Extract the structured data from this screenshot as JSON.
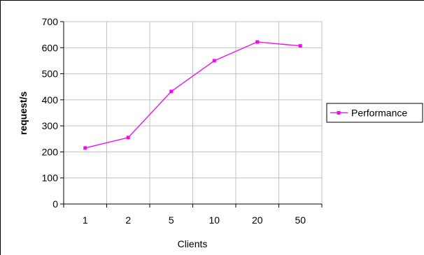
{
  "chart_data": {
    "type": "line",
    "categories": [
      "1",
      "2",
      "5",
      "10",
      "20",
      "50"
    ],
    "series": [
      {
        "name": "Performance",
        "values": [
          215,
          255,
          432,
          550,
          622,
          607
        ]
      }
    ],
    "xlabel": "Clients",
    "ylabel": "request/s",
    "ylim": [
      0,
      700
    ],
    "yticks": [
      0,
      100,
      200,
      300,
      400,
      500,
      600,
      700
    ],
    "grid": true,
    "legend_position": "right",
    "series_color": "#ff00ff"
  }
}
